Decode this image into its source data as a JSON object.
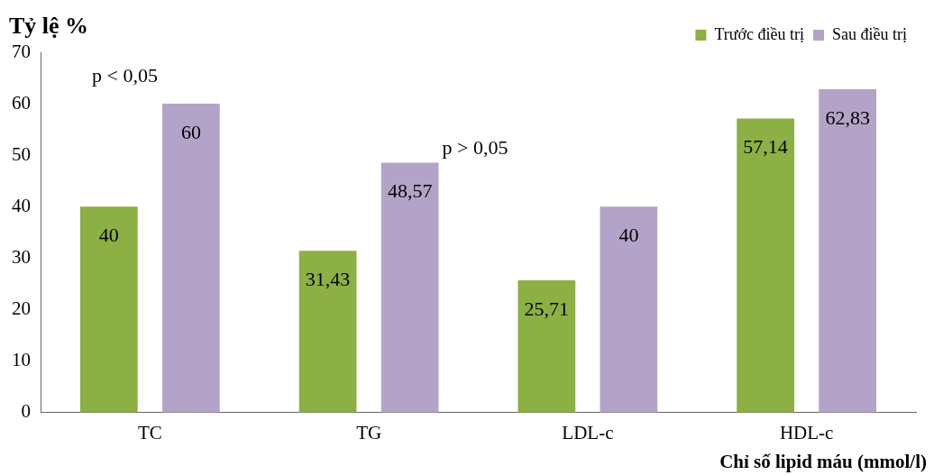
{
  "chart_data": {
    "type": "bar",
    "ylabel": "Tỷ lệ %",
    "xlabel": "Chỉ số lipid máu (mmol/l)",
    "categories": [
      "TC",
      "TG",
      "LDL-c",
      "HDL-c"
    ],
    "series": [
      {
        "name": "Trước điều trị",
        "color": "#8cb043",
        "values": [
          40,
          31.43,
          25.71,
          57.14
        ],
        "value_labels": [
          "40",
          "31,43",
          "25,71",
          "57,14"
        ]
      },
      {
        "name": "Sau điều trị",
        "color": "#b4a3c8",
        "values": [
          60,
          48.57,
          40,
          62.83
        ],
        "value_labels": [
          "60",
          "48,57",
          "40",
          "62,83"
        ]
      }
    ],
    "ylim": [
      0,
      70
    ],
    "yticks": [
      0,
      10,
      20,
      30,
      40,
      50,
      60,
      70
    ],
    "grid": false,
    "legend": "top right",
    "annotations": [
      "p < 0,05",
      "p > 0,05"
    ]
  }
}
